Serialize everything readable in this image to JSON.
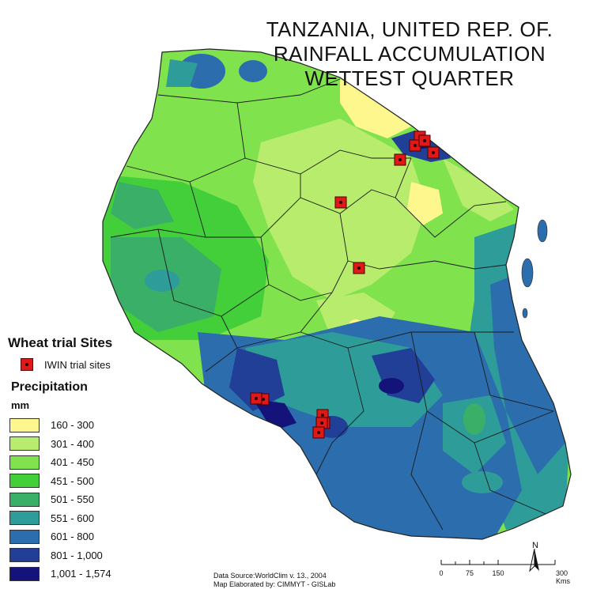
{
  "title": {
    "line1": "TANZANIA, UNITED REP. OF.",
    "line2": "RAINFALL ACCUMULATION",
    "line3": "WETTEST QUARTER"
  },
  "legend": {
    "sites_title": "Wheat trial Sites",
    "site_label": "IWIN trial sites",
    "precip_title": "Precipitation",
    "unit": "mm",
    "classes": [
      {
        "label": "160 - 300",
        "color": "#fdf78e"
      },
      {
        "label": "301 - 400",
        "color": "#b8ec6c"
      },
      {
        "label": "401 - 450",
        "color": "#80e24c"
      },
      {
        "label": "451 - 500",
        "color": "#42cf3a"
      },
      {
        "label": "501 - 550",
        "color": "#3aaf68"
      },
      {
        "label": "551 - 600",
        "color": "#2e9c98"
      },
      {
        "label": "601 - 800",
        "color": "#2c6dad"
      },
      {
        "label": "801 - 1,000",
        "color": "#213f97"
      },
      {
        "label": "1,001 - 1,574",
        "color": "#13137a"
      }
    ]
  },
  "source": {
    "line1": "Data Source:WorldClim v. 13., 2004",
    "line2": "Map Elaborated by: CIMMYT - GISLab"
  },
  "scale": {
    "ticks": [
      "0",
      "75",
      "150",
      "300 Kms"
    ]
  },
  "north_label": "N",
  "sites_count": 13
}
